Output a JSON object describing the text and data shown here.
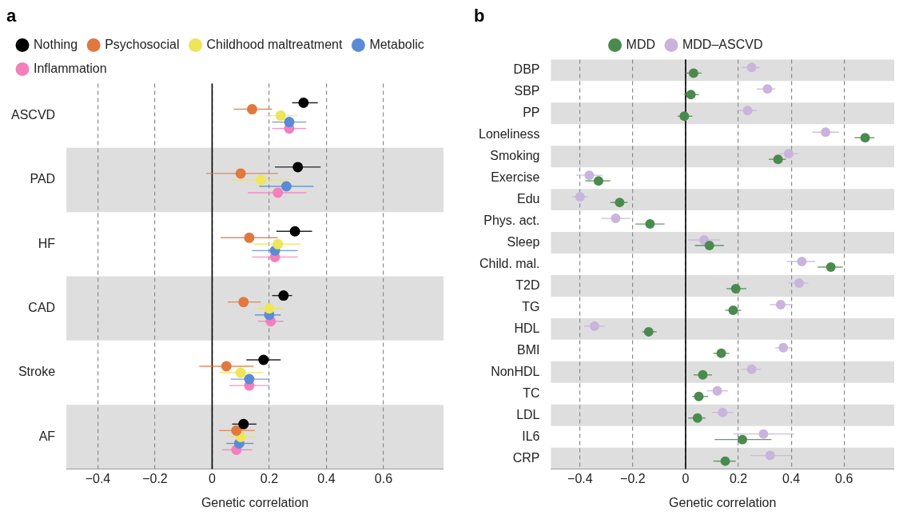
{
  "chart_data": [
    {
      "type": "scatter",
      "title": "a",
      "orientation": "horizontal",
      "xlabel": "Genetic correlation",
      "categories": [
        "ASCVD",
        "PAD",
        "HF",
        "CAD",
        "Stroke",
        "AF"
      ],
      "xlim": [
        -0.51,
        0.81
      ],
      "xticks": [
        -0.4,
        -0.2,
        0,
        0.2,
        0.4,
        0.6
      ],
      "grid": "x",
      "legend": "top left",
      "marker": "circle",
      "ref_lines": [
        {
          "axis": "x",
          "value": 0,
          "color": "#000000"
        }
      ],
      "series": [
        {
          "name": "Nothing",
          "color": "#000000",
          "values": [
            0.32,
            0.3,
            0.29,
            0.25,
            0.18,
            0.11
          ],
          "errors": [
            [
              0.28,
              0.37
            ],
            [
              0.22,
              0.38
            ],
            [
              0.225,
              0.35
            ],
            [
              0.21,
              0.28
            ],
            [
              0.12,
              0.24
            ],
            [
              0.07,
              0.155
            ]
          ]
        },
        {
          "name": "Psychosocial",
          "color": "#e07840",
          "values": [
            0.14,
            0.1,
            0.13,
            0.11,
            0.05,
            0.085
          ],
          "errors": [
            [
              0.075,
              0.21
            ],
            [
              -0.02,
              0.23
            ],
            [
              0.03,
              0.23
            ],
            [
              0.055,
              0.17
            ],
            [
              -0.045,
              0.145
            ],
            [
              0.025,
              0.15
            ]
          ]
        },
        {
          "name": "Childhood maltreatment",
          "color": "#ede55a",
          "values": [
            0.24,
            0.17,
            0.23,
            0.2,
            0.1,
            0.1
          ],
          "errors": [
            [
              0.19,
              0.3
            ],
            [
              0.07,
              0.27
            ],
            [
              0.145,
              0.31
            ],
            [
              0.16,
              0.25
            ],
            [
              0.025,
              0.18
            ],
            [
              0.05,
              0.155
            ]
          ]
        },
        {
          "name": "Metabolic",
          "color": "#5b8bd6",
          "values": [
            0.27,
            0.26,
            0.22,
            0.2,
            0.13,
            0.095
          ],
          "errors": [
            [
              0.21,
              0.33
            ],
            [
              0.165,
              0.355
            ],
            [
              0.14,
              0.3
            ],
            [
              0.15,
              0.24
            ],
            [
              0.065,
              0.2
            ],
            [
              0.05,
              0.145
            ]
          ]
        },
        {
          "name": "Inflammation",
          "color": "#f47fbd",
          "values": [
            0.27,
            0.23,
            0.22,
            0.205,
            0.13,
            0.085
          ],
          "errors": [
            [
              0.21,
              0.33
            ],
            [
              0.125,
              0.33
            ],
            [
              0.14,
              0.3
            ],
            [
              0.16,
              0.25
            ],
            [
              0.06,
              0.2
            ],
            [
              0.035,
              0.14
            ]
          ]
        }
      ]
    },
    {
      "type": "scatter",
      "title": "b",
      "orientation": "horizontal",
      "xlabel": "Genetic correlation",
      "categories": [
        "DBP",
        "SBP",
        "PP",
        "Loneliness",
        "Smoking",
        "Exercise",
        "Edu",
        "Phys. act.",
        "Sleep",
        "Child. mal.",
        "T2D",
        "TG",
        "HDL",
        "BMI",
        "NonHDL",
        "TC",
        "LDL",
        "IL6",
        "CRP"
      ],
      "xlim": [
        -0.51,
        0.79
      ],
      "xticks": [
        -0.4,
        -0.2,
        0,
        0.2,
        0.4,
        0.6
      ],
      "grid": "x",
      "legend": "top",
      "marker": "circle",
      "ref_lines": [
        {
          "axis": "x",
          "value": 0,
          "color": "#000000"
        }
      ],
      "series": [
        {
          "name": "MDD",
          "color": "#4a8a4e",
          "values": [
            0.03,
            0.02,
            -0.005,
            0.68,
            0.35,
            -0.33,
            -0.25,
            -0.135,
            0.09,
            0.55,
            0.19,
            0.18,
            -0.14,
            0.135,
            0.065,
            0.05,
            0.045,
            0.215,
            0.15
          ],
          "errors": [
            [
              0,
              0.06
            ],
            [
              -0.005,
              0.05
            ],
            [
              -0.03,
              0.025
            ],
            [
              0.64,
              0.715
            ],
            [
              0.315,
              0.38
            ],
            [
              -0.38,
              -0.285
            ],
            [
              -0.285,
              -0.22
            ],
            [
              -0.19,
              -0.08
            ],
            [
              0.035,
              0.145
            ],
            [
              0.5,
              0.595
            ],
            [
              0.155,
              0.23
            ],
            [
              0.15,
              0.21
            ],
            [
              -0.165,
              -0.11
            ],
            [
              0.105,
              0.165
            ],
            [
              0.03,
              0.1
            ],
            [
              0.025,
              0.085
            ],
            [
              0.01,
              0.075
            ],
            [
              0.11,
              0.325
            ],
            [
              0.105,
              0.19
            ]
          ]
        },
        {
          "name": "MDD–ASCVD",
          "color": "#c8b4dc",
          "values": [
            0.25,
            0.31,
            0.235,
            0.53,
            0.39,
            -0.365,
            -0.4,
            -0.265,
            0.07,
            0.44,
            0.43,
            0.36,
            -0.345,
            0.37,
            0.25,
            0.12,
            0.14,
            0.295,
            0.32
          ],
          "errors": [
            [
              0.21,
              0.28
            ],
            [
              0.27,
              0.34
            ],
            [
              0.2,
              0.27
            ],
            [
              0.48,
              0.58
            ],
            [
              0.355,
              0.425
            ],
            [
              -0.415,
              -0.315
            ],
            [
              -0.43,
              -0.37
            ],
            [
              -0.32,
              -0.21
            ],
            [
              0.01,
              0.13
            ],
            [
              0.385,
              0.49
            ],
            [
              0.39,
              0.465
            ],
            [
              0.32,
              0.405
            ],
            [
              -0.385,
              -0.305
            ],
            [
              0.34,
              0.4
            ],
            [
              0.21,
              0.285
            ],
            [
              0.08,
              0.16
            ],
            [
              0.1,
              0.18
            ],
            [
              0.18,
              0.41
            ],
            [
              0.245,
              0.4
            ]
          ]
        }
      ]
    }
  ]
}
